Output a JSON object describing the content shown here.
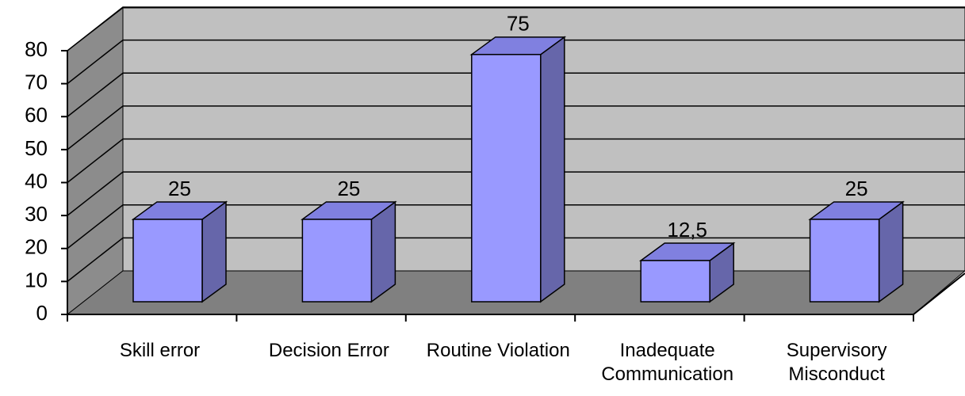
{
  "chart_data": {
    "type": "bar3d",
    "categories": [
      "Skill error",
      "Decision Error",
      "Routine Violation",
      "Inadequate\nCommunication",
      "Supervisory\nMisconduct"
    ],
    "values": [
      25,
      25,
      75,
      12.5,
      25
    ],
    "value_labels": [
      "25",
      "25",
      "75",
      "12,5",
      "25"
    ],
    "color": "#9999ff",
    "ylim": [
      0,
      80
    ],
    "yticks": [
      0,
      10,
      20,
      30,
      40,
      50,
      60,
      70,
      80
    ],
    "grid": true
  }
}
